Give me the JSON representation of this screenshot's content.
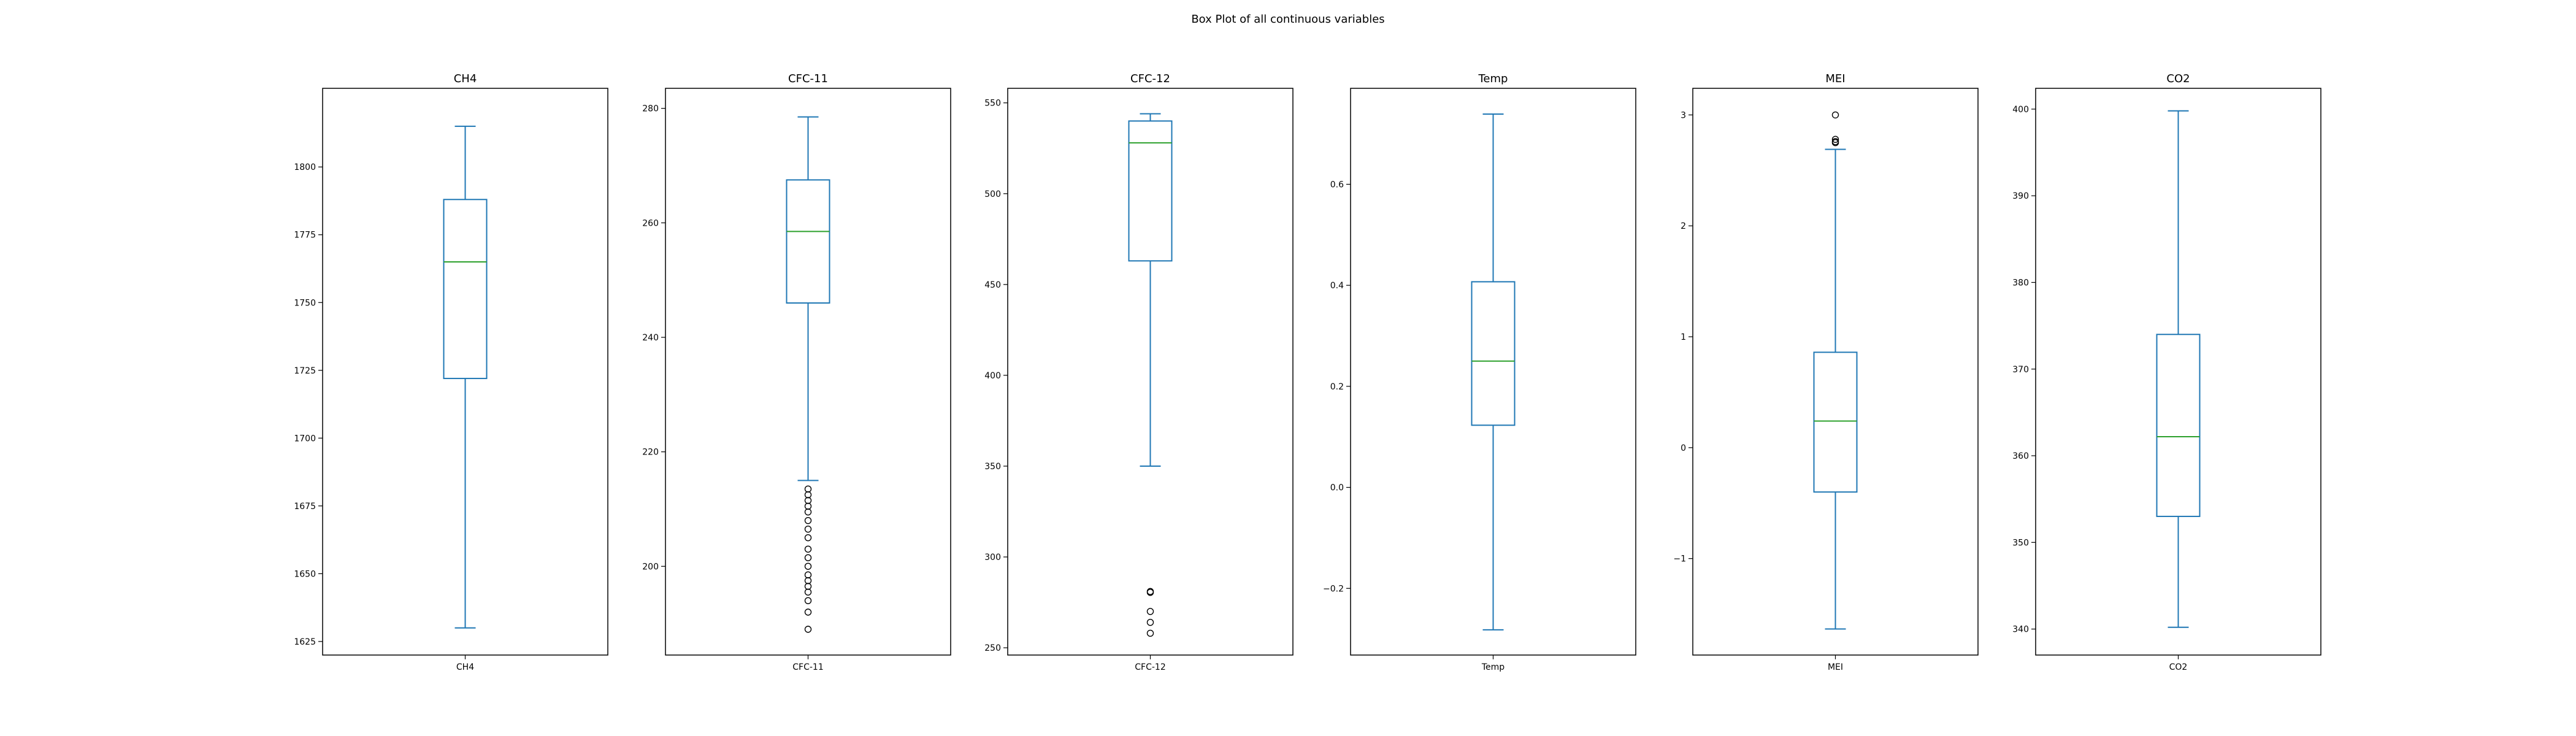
{
  "chart_data": {
    "type": "boxplot",
    "title": "Box Plot of all continuous variables",
    "colors": {
      "box": "#1f77b4",
      "median": "#2ca02c",
      "flier": "#000000",
      "frame": "#000000"
    },
    "panels": [
      {
        "title": "CH4",
        "xlabel": "CH4",
        "ylim": [
          1620,
          1829
        ],
        "yticks": [
          1625,
          1650,
          1675,
          1700,
          1725,
          1750,
          1775,
          1800
        ],
        "whisker_low": 1630,
        "q1": 1722,
        "median": 1765,
        "q3": 1788,
        "whisker_high": 1815,
        "fliers": []
      },
      {
        "title": "CFC-11",
        "xlabel": "CFC-11",
        "ylim": [
          184.5,
          283.5
        ],
        "yticks": [
          200,
          220,
          240,
          260,
          280
        ],
        "whisker_low": 215,
        "q1": 246,
        "median": 258.5,
        "q3": 267.5,
        "whisker_high": 278.5,
        "fliers": [
          213.5,
          212.5,
          211.5,
          210.5,
          209.5,
          208,
          206.5,
          205,
          203,
          201.5,
          200,
          198.5,
          197.5,
          196.5,
          195.5,
          194,
          192,
          189
        ]
      },
      {
        "title": "CFC-12",
        "xlabel": "CFC-12",
        "ylim": [
          246,
          558
        ],
        "yticks": [
          250,
          300,
          350,
          400,
          450,
          500,
          550
        ],
        "whisker_low": 350,
        "q1": 463,
        "median": 528,
        "q3": 540,
        "whisker_high": 544,
        "fliers": [
          281,
          280.5,
          270,
          264,
          258
        ]
      },
      {
        "title": "Temp",
        "xlabel": "Temp",
        "ylim": [
          -0.332,
          0.79
        ],
        "yticks": [
          -0.2,
          0.0,
          0.2,
          0.4,
          0.6
        ],
        "yticklabels": [
          "−0.2",
          "0.0",
          "0.2",
          "0.4",
          "0.6"
        ],
        "whisker_low": -0.282,
        "q1": 0.123,
        "median": 0.25,
        "q3": 0.407,
        "whisker_high": 0.739,
        "fliers": []
      },
      {
        "title": "MEI",
        "xlabel": "MEI",
        "ylim": [
          -1.87,
          3.24
        ],
        "yticks": [
          -1,
          0,
          1,
          2,
          3
        ],
        "yticklabels": [
          "−1",
          "0",
          "1",
          "2",
          "3"
        ],
        "whisker_low": -1.635,
        "q1": -0.4,
        "median": 0.24,
        "q3": 0.86,
        "whisker_high": 2.69,
        "fliers": [
          3.0,
          2.78,
          2.76,
          2.75
        ]
      },
      {
        "title": "CO2",
        "xlabel": "CO2",
        "ylim": [
          337,
          402.4
        ],
        "yticks": [
          340,
          350,
          360,
          370,
          380,
          390,
          400
        ],
        "whisker_low": 340.2,
        "q1": 353,
        "median": 362.2,
        "q3": 374,
        "whisker_high": 399.8,
        "fliers": []
      }
    ]
  }
}
